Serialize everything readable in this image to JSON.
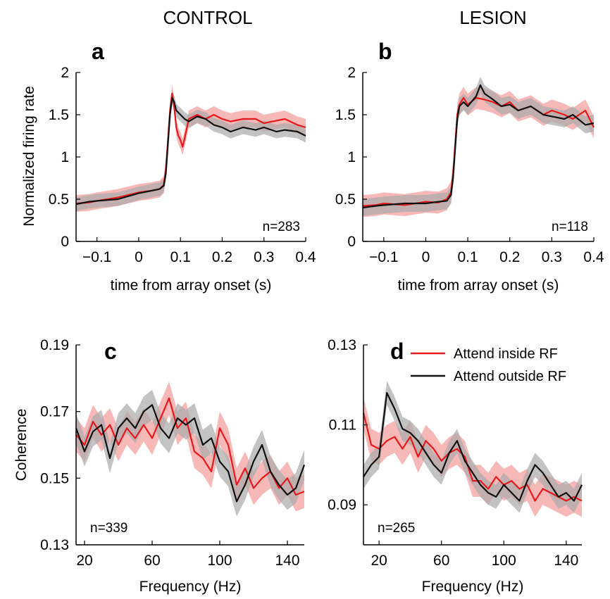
{
  "column_titles": [
    "CONTROL",
    "LESION"
  ],
  "colors": {
    "inside": "#e8191c",
    "inside_band": "#f4a0a0",
    "outside": "#111111",
    "outside_band": "#a9a9a9"
  },
  "legend": {
    "inside": "Attend inside RF",
    "outside": "Attend outside RF"
  },
  "chart_data": [
    {
      "type": "line",
      "panel": "a",
      "n_label": "n=283",
      "xlabel": "time from array onset (s)",
      "ylabel": "Normalized firing rate",
      "xlim": [
        -0.15,
        0.4
      ],
      "ylim": [
        0,
        2
      ],
      "xticks": [
        -0.1,
        0,
        0.1,
        0.2,
        0.3,
        0.4
      ],
      "xtick_labels": [
        "−0.1",
        "0",
        "0.1",
        "0.2",
        "0.3",
        "0.4"
      ],
      "yticks": [
        0,
        0.5,
        1,
        1.5,
        2
      ],
      "ytick_labels": [
        "0",
        "0.5",
        "1",
        "1.5",
        "2"
      ],
      "series": [
        {
          "name": "Attend inside RF",
          "band": 0.1,
          "x": [
            -0.15,
            -0.12,
            -0.1,
            -0.05,
            0,
            0.03,
            0.05,
            0.06,
            0.065,
            0.07,
            0.075,
            0.08,
            0.085,
            0.09,
            0.095,
            0.1,
            0.105,
            0.11,
            0.12,
            0.14,
            0.16,
            0.18,
            0.2,
            0.22,
            0.25,
            0.28,
            0.3,
            0.33,
            0.35,
            0.38,
            0.4
          ],
          "y": [
            0.45,
            0.46,
            0.48,
            0.52,
            0.58,
            0.6,
            0.62,
            0.67,
            0.85,
            1.2,
            1.55,
            1.75,
            1.6,
            1.35,
            1.25,
            1.2,
            1.12,
            1.22,
            1.45,
            1.5,
            1.45,
            1.5,
            1.45,
            1.42,
            1.45,
            1.45,
            1.4,
            1.43,
            1.45,
            1.38,
            1.35
          ]
        },
        {
          "name": "Attend outside RF",
          "band": 0.08,
          "x": [
            -0.15,
            -0.12,
            -0.1,
            -0.05,
            0,
            0.03,
            0.05,
            0.06,
            0.065,
            0.07,
            0.075,
            0.08,
            0.085,
            0.09,
            0.1,
            0.11,
            0.12,
            0.14,
            0.16,
            0.18,
            0.2,
            0.22,
            0.25,
            0.28,
            0.3,
            0.33,
            0.35,
            0.38,
            0.4
          ],
          "y": [
            0.44,
            0.47,
            0.48,
            0.5,
            0.57,
            0.6,
            0.62,
            0.66,
            0.8,
            1.15,
            1.5,
            1.7,
            1.65,
            1.55,
            1.5,
            1.45,
            1.42,
            1.48,
            1.45,
            1.38,
            1.35,
            1.3,
            1.35,
            1.32,
            1.35,
            1.3,
            1.32,
            1.3,
            1.25
          ]
        }
      ]
    },
    {
      "type": "line",
      "panel": "b",
      "n_label": "n=118",
      "xlabel": "time from array onset (s)",
      "ylabel": "",
      "xlim": [
        -0.15,
        0.4
      ],
      "ylim": [
        0,
        2
      ],
      "xticks": [
        -0.1,
        0,
        0.1,
        0.2,
        0.3,
        0.4
      ],
      "xtick_labels": [
        "−0.1",
        "0",
        "0.1",
        "0.2",
        "0.3",
        "0.4"
      ],
      "yticks": [
        0,
        0.5,
        1,
        1.5,
        2
      ],
      "ytick_labels": [
        "0",
        "0.5",
        "1",
        "1.5",
        "2"
      ],
      "series": [
        {
          "name": "Attend inside RF",
          "band": 0.13,
          "x": [
            -0.15,
            -0.12,
            -0.1,
            -0.05,
            0,
            0.03,
            0.05,
            0.06,
            0.065,
            0.07,
            0.075,
            0.08,
            0.09,
            0.1,
            0.12,
            0.14,
            0.16,
            0.18,
            0.2,
            0.22,
            0.25,
            0.28,
            0.3,
            0.33,
            0.35,
            0.38,
            0.4
          ],
          "y": [
            0.42,
            0.43,
            0.45,
            0.43,
            0.47,
            0.46,
            0.5,
            0.58,
            0.8,
            1.15,
            1.5,
            1.62,
            1.7,
            1.62,
            1.7,
            1.68,
            1.65,
            1.6,
            1.65,
            1.55,
            1.6,
            1.5,
            1.55,
            1.5,
            1.45,
            1.55,
            1.35
          ]
        },
        {
          "name": "Attend outside RF",
          "band": 0.1,
          "x": [
            -0.15,
            -0.12,
            -0.1,
            -0.05,
            0,
            0.03,
            0.05,
            0.06,
            0.065,
            0.07,
            0.075,
            0.08,
            0.09,
            0.1,
            0.12,
            0.13,
            0.14,
            0.16,
            0.18,
            0.2,
            0.22,
            0.25,
            0.28,
            0.3,
            0.33,
            0.35,
            0.38,
            0.4
          ],
          "y": [
            0.4,
            0.42,
            0.43,
            0.45,
            0.45,
            0.47,
            0.48,
            0.55,
            0.75,
            1.1,
            1.45,
            1.6,
            1.65,
            1.6,
            1.72,
            1.85,
            1.75,
            1.68,
            1.6,
            1.62,
            1.55,
            1.6,
            1.5,
            1.48,
            1.45,
            1.5,
            1.38,
            1.4
          ]
        }
      ]
    },
    {
      "type": "line",
      "panel": "c",
      "n_label": "n=339",
      "xlabel": "Frequency (Hz)",
      "ylabel": "Coherence",
      "xlim": [
        15,
        150
      ],
      "ylim": [
        0.13,
        0.19
      ],
      "xticks": [
        20,
        60,
        100,
        140
      ],
      "xtick_labels": [
        "20",
        "60",
        "100",
        "140"
      ],
      "yticks": [
        0.13,
        0.15,
        0.17,
        0.19
      ],
      "ytick_labels": [
        "0.13",
        "0.15",
        "0.17",
        "0.19"
      ],
      "series": [
        {
          "name": "Attend inside RF",
          "band": 0.005,
          "x": [
            15,
            20,
            25,
            30,
            35,
            40,
            45,
            50,
            55,
            60,
            65,
            70,
            75,
            80,
            85,
            90,
            95,
            100,
            105,
            110,
            115,
            120,
            125,
            130,
            135,
            140,
            145,
            150
          ],
          "y": [
            0.163,
            0.16,
            0.167,
            0.163,
            0.166,
            0.16,
            0.165,
            0.162,
            0.166,
            0.162,
            0.168,
            0.174,
            0.165,
            0.168,
            0.158,
            0.156,
            0.152,
            0.165,
            0.16,
            0.148,
            0.153,
            0.147,
            0.15,
            0.152,
            0.147,
            0.15,
            0.145,
            0.146
          ]
        },
        {
          "name": "Attend outside RF",
          "band": 0.0045,
          "x": [
            15,
            20,
            25,
            30,
            35,
            40,
            45,
            50,
            55,
            60,
            65,
            70,
            75,
            80,
            85,
            90,
            95,
            100,
            105,
            110,
            115,
            120,
            125,
            130,
            135,
            140,
            145,
            150
          ],
          "y": [
            0.165,
            0.158,
            0.164,
            0.166,
            0.156,
            0.165,
            0.168,
            0.165,
            0.17,
            0.172,
            0.165,
            0.162,
            0.168,
            0.166,
            0.168,
            0.16,
            0.162,
            0.155,
            0.152,
            0.143,
            0.148,
            0.155,
            0.16,
            0.152,
            0.148,
            0.145,
            0.147,
            0.154
          ]
        }
      ]
    },
    {
      "type": "line",
      "panel": "d",
      "n_label": "n=265",
      "xlabel": "Frequency (Hz)",
      "ylabel": "",
      "xlim": [
        10,
        150
      ],
      "ylim": [
        0.08,
        0.13
      ],
      "xticks": [
        20,
        60,
        100,
        140
      ],
      "xtick_labels": [
        "20",
        "60",
        "100",
        "140"
      ],
      "yticks": [
        0.09,
        0.11,
        0.13
      ],
      "ytick_labels": [
        "0.09",
        "0.11",
        "0.13"
      ],
      "series": [
        {
          "name": "Attend inside RF",
          "band": 0.004,
          "x": [
            10,
            15,
            20,
            25,
            30,
            35,
            40,
            45,
            50,
            55,
            60,
            65,
            70,
            75,
            80,
            85,
            90,
            95,
            100,
            105,
            110,
            115,
            120,
            125,
            130,
            135,
            140,
            145,
            150
          ],
          "y": [
            0.113,
            0.105,
            0.104,
            0.106,
            0.107,
            0.104,
            0.107,
            0.102,
            0.106,
            0.104,
            0.101,
            0.103,
            0.104,
            0.102,
            0.096,
            0.096,
            0.094,
            0.097,
            0.095,
            0.096,
            0.094,
            0.095,
            0.091,
            0.094,
            0.093,
            0.092,
            0.091,
            0.092,
            0.091
          ]
        },
        {
          "name": "Attend outside RF",
          "band": 0.003,
          "x": [
            10,
            15,
            20,
            25,
            30,
            35,
            40,
            45,
            50,
            55,
            60,
            65,
            70,
            75,
            80,
            85,
            90,
            95,
            100,
            105,
            110,
            115,
            120,
            125,
            130,
            135,
            140,
            145,
            150
          ],
          "y": [
            0.097,
            0.1,
            0.102,
            0.118,
            0.114,
            0.109,
            0.108,
            0.106,
            0.103,
            0.1,
            0.098,
            0.103,
            0.106,
            0.101,
            0.098,
            0.095,
            0.093,
            0.092,
            0.095,
            0.093,
            0.091,
            0.096,
            0.1,
            0.098,
            0.095,
            0.092,
            0.093,
            0.091,
            0.095
          ]
        }
      ]
    }
  ]
}
